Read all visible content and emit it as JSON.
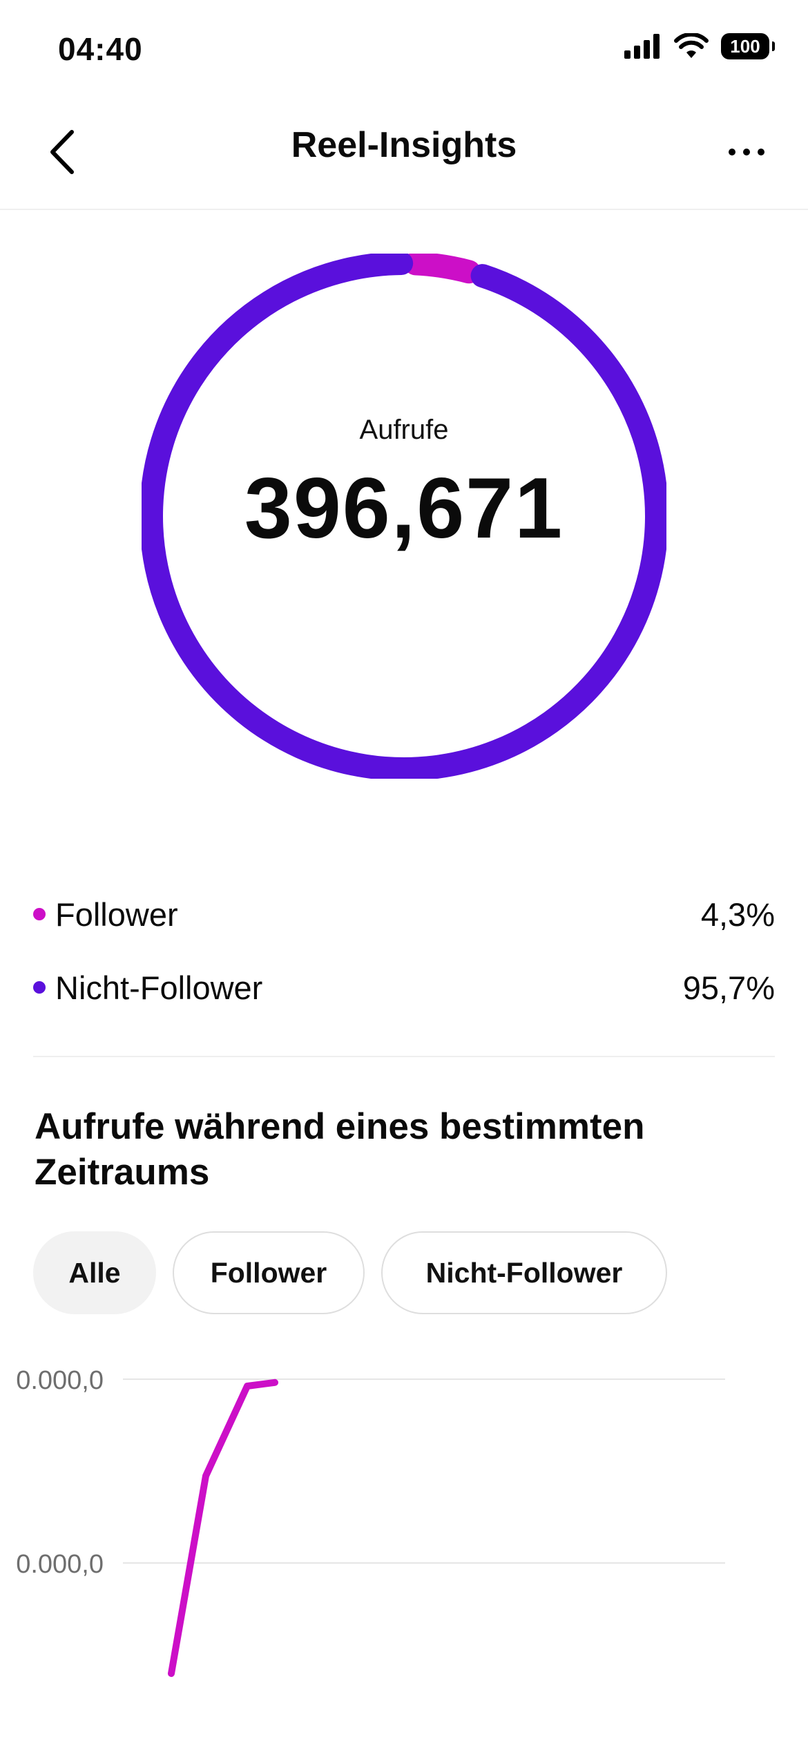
{
  "status_bar": {
    "time": "04:40",
    "battery": "100",
    "icons": [
      "cellular-signal-icon",
      "wifi-icon",
      "battery-icon"
    ]
  },
  "header": {
    "title": "Reel-Insights",
    "back_icon": "chevron-left-icon",
    "more_icon": "more-horizontal-icon"
  },
  "summary": {
    "label": "Aufrufe",
    "value": "396,671"
  },
  "colors": {
    "follower": "#cc0fc7",
    "non_follower": "#5a10dc",
    "text": "#0b0b0b",
    "muted": "#6e6e6e"
  },
  "legend": [
    {
      "label": "Follower",
      "value": "4,3%",
      "share": 4.3,
      "color": "#cc0fc7"
    },
    {
      "label": "Nicht-Follower",
      "value": "95,7%",
      "share": 95.7,
      "color": "#5a10dc"
    }
  ],
  "section": {
    "title": "Aufrufe während eines bestimmten Zeitraums"
  },
  "filters": [
    {
      "label": "Alle",
      "active": true
    },
    {
      "label": "Follower",
      "active": false
    },
    {
      "label": "Nicht-Follower",
      "active": false
    }
  ],
  "chart_data": {
    "type": "line",
    "ytick_labels": [
      "0.000,0",
      "0.000,0"
    ],
    "series": [
      {
        "color": "#cc0fc7",
        "points": [
          [
            0.35,
            0.0
          ],
          [
            0.6,
            0.55
          ],
          [
            0.9,
            0.8
          ],
          [
            1.1,
            0.81
          ]
        ]
      }
    ]
  }
}
